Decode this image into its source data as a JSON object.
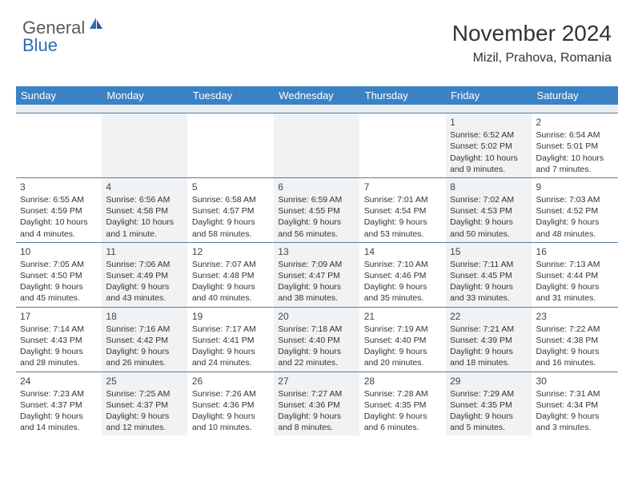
{
  "logo": {
    "word1": "General",
    "word2": "Blue"
  },
  "title": "November 2024",
  "location": "Mizil, Prahova, Romania",
  "colors": {
    "header_bg": "#3b82c4",
    "header_text": "#ffffff",
    "alt_bg": "#f0f2f4",
    "spacer_bg": "#e9edf0",
    "row_border": "#5a7a9a",
    "text": "#333333",
    "logo_gray": "#5a5a5a",
    "logo_blue": "#2b6db8",
    "page_bg": "#ffffff"
  },
  "typography": {
    "title_fontsize": 28,
    "location_fontsize": 16,
    "header_fontsize": 13,
    "cell_fontsize": 10.5,
    "daynum_fontsize": 12,
    "logo_fontsize": 22
  },
  "layout": {
    "columns": 7,
    "rows": 5,
    "cell_min_height": 78,
    "spacer_height": 10
  },
  "dayNames": [
    "Sunday",
    "Monday",
    "Tuesday",
    "Wednesday",
    "Thursday",
    "Friday",
    "Saturday"
  ],
  "weeks": [
    [
      null,
      null,
      null,
      null,
      null,
      {
        "n": "1",
        "sr": "6:52 AM",
        "ss": "5:02 PM",
        "dl": "10 hours and 9 minutes."
      },
      {
        "n": "2",
        "sr": "6:54 AM",
        "ss": "5:01 PM",
        "dl": "10 hours and 7 minutes."
      }
    ],
    [
      {
        "n": "3",
        "sr": "6:55 AM",
        "ss": "4:59 PM",
        "dl": "10 hours and 4 minutes."
      },
      {
        "n": "4",
        "sr": "6:56 AM",
        "ss": "4:58 PM",
        "dl": "10 hours and 1 minute."
      },
      {
        "n": "5",
        "sr": "6:58 AM",
        "ss": "4:57 PM",
        "dl": "9 hours and 58 minutes."
      },
      {
        "n": "6",
        "sr": "6:59 AM",
        "ss": "4:55 PM",
        "dl": "9 hours and 56 minutes."
      },
      {
        "n": "7",
        "sr": "7:01 AM",
        "ss": "4:54 PM",
        "dl": "9 hours and 53 minutes."
      },
      {
        "n": "8",
        "sr": "7:02 AM",
        "ss": "4:53 PM",
        "dl": "9 hours and 50 minutes."
      },
      {
        "n": "9",
        "sr": "7:03 AM",
        "ss": "4:52 PM",
        "dl": "9 hours and 48 minutes."
      }
    ],
    [
      {
        "n": "10",
        "sr": "7:05 AM",
        "ss": "4:50 PM",
        "dl": "9 hours and 45 minutes."
      },
      {
        "n": "11",
        "sr": "7:06 AM",
        "ss": "4:49 PM",
        "dl": "9 hours and 43 minutes."
      },
      {
        "n": "12",
        "sr": "7:07 AM",
        "ss": "4:48 PM",
        "dl": "9 hours and 40 minutes."
      },
      {
        "n": "13",
        "sr": "7:09 AM",
        "ss": "4:47 PM",
        "dl": "9 hours and 38 minutes."
      },
      {
        "n": "14",
        "sr": "7:10 AM",
        "ss": "4:46 PM",
        "dl": "9 hours and 35 minutes."
      },
      {
        "n": "15",
        "sr": "7:11 AM",
        "ss": "4:45 PM",
        "dl": "9 hours and 33 minutes."
      },
      {
        "n": "16",
        "sr": "7:13 AM",
        "ss": "4:44 PM",
        "dl": "9 hours and 31 minutes."
      }
    ],
    [
      {
        "n": "17",
        "sr": "7:14 AM",
        "ss": "4:43 PM",
        "dl": "9 hours and 28 minutes."
      },
      {
        "n": "18",
        "sr": "7:16 AM",
        "ss": "4:42 PM",
        "dl": "9 hours and 26 minutes."
      },
      {
        "n": "19",
        "sr": "7:17 AM",
        "ss": "4:41 PM",
        "dl": "9 hours and 24 minutes."
      },
      {
        "n": "20",
        "sr": "7:18 AM",
        "ss": "4:40 PM",
        "dl": "9 hours and 22 minutes."
      },
      {
        "n": "21",
        "sr": "7:19 AM",
        "ss": "4:40 PM",
        "dl": "9 hours and 20 minutes."
      },
      {
        "n": "22",
        "sr": "7:21 AM",
        "ss": "4:39 PM",
        "dl": "9 hours and 18 minutes."
      },
      {
        "n": "23",
        "sr": "7:22 AM",
        "ss": "4:38 PM",
        "dl": "9 hours and 16 minutes."
      }
    ],
    [
      {
        "n": "24",
        "sr": "7:23 AM",
        "ss": "4:37 PM",
        "dl": "9 hours and 14 minutes."
      },
      {
        "n": "25",
        "sr": "7:25 AM",
        "ss": "4:37 PM",
        "dl": "9 hours and 12 minutes."
      },
      {
        "n": "26",
        "sr": "7:26 AM",
        "ss": "4:36 PM",
        "dl": "9 hours and 10 minutes."
      },
      {
        "n": "27",
        "sr": "7:27 AM",
        "ss": "4:36 PM",
        "dl": "9 hours and 8 minutes."
      },
      {
        "n": "28",
        "sr": "7:28 AM",
        "ss": "4:35 PM",
        "dl": "9 hours and 6 minutes."
      },
      {
        "n": "29",
        "sr": "7:29 AM",
        "ss": "4:35 PM",
        "dl": "9 hours and 5 minutes."
      },
      {
        "n": "30",
        "sr": "7:31 AM",
        "ss": "4:34 PM",
        "dl": "9 hours and 3 minutes."
      }
    ]
  ],
  "labels": {
    "sunrise": "Sunrise:",
    "sunset": "Sunset:",
    "daylight": "Daylight:"
  }
}
